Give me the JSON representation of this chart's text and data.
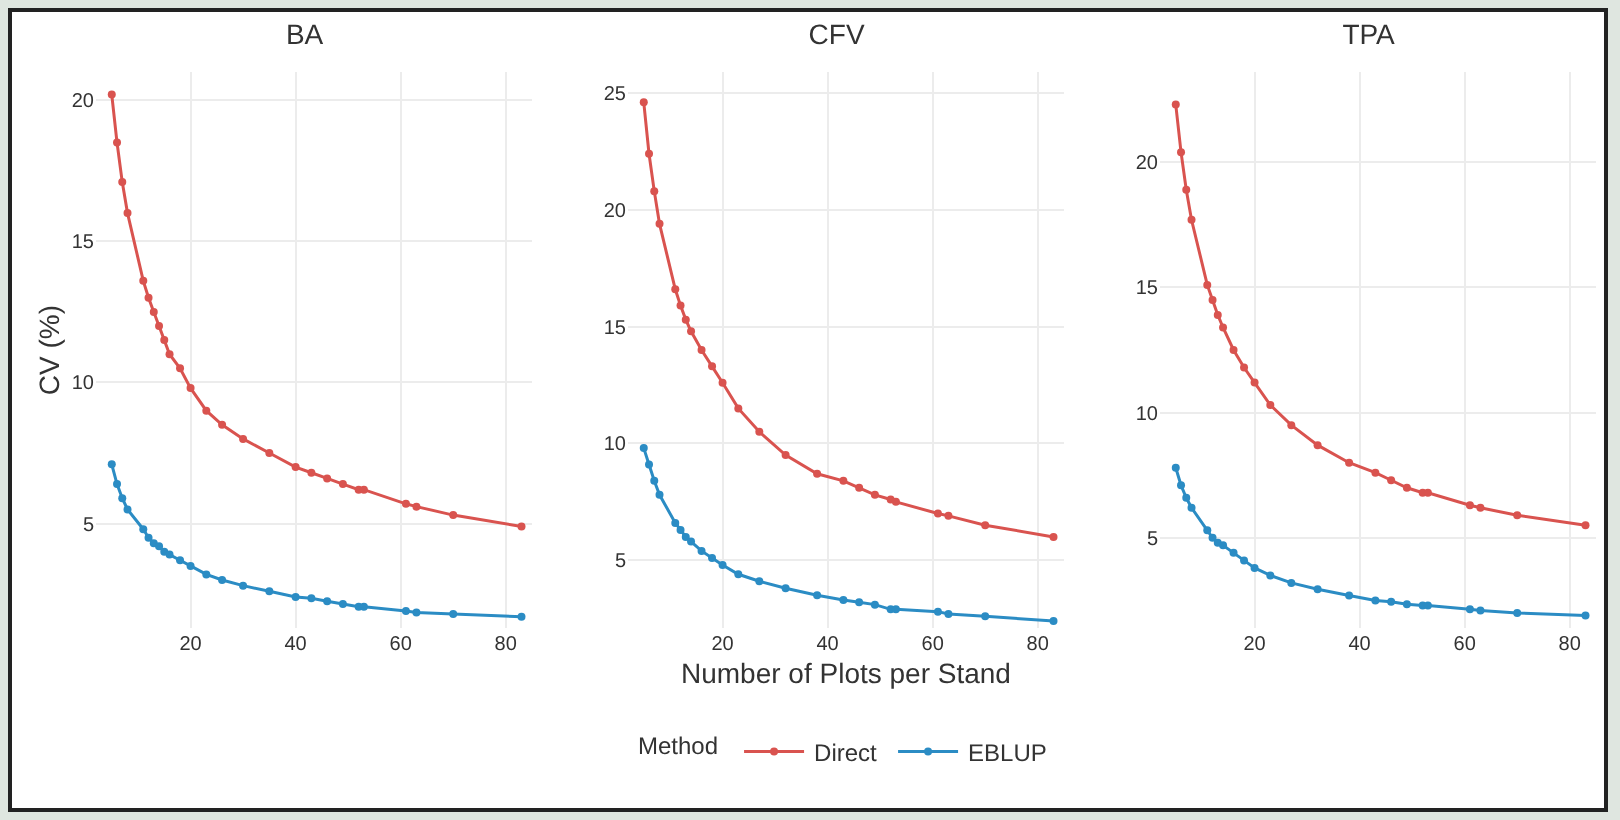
{
  "chart_data": [
    {
      "type": "line",
      "title": "BA",
      "ylabel": "CV (%)",
      "x": [
        5,
        6,
        7,
        8,
        11,
        12,
        13,
        14,
        15,
        16,
        18,
        20,
        23,
        26,
        30,
        35,
        40,
        43,
        46,
        49,
        52,
        53,
        61,
        63,
        70,
        83
      ],
      "xlim": [
        2,
        85
      ],
      "xticks": [
        20,
        40,
        60,
        80
      ],
      "ylim": [
        1.3,
        21
      ],
      "yticks": [
        5,
        10,
        15,
        20
      ],
      "grid": true,
      "legend": false,
      "marker": "circle",
      "line_style": "solid",
      "series": [
        {
          "color": "#d9534f",
          "values": [
            20.2,
            18.5,
            17.1,
            16,
            13.6,
            13,
            12.5,
            12,
            11.5,
            11,
            10.5,
            9.8,
            9,
            8.5,
            8,
            7.5,
            7,
            6.8,
            6.6,
            6.4,
            6.2,
            6.2,
            5.7,
            5.6,
            5.3,
            4.9
          ]
        },
        {
          "color": "#2b8cc4",
          "values": [
            7.1,
            6.4,
            5.9,
            5.5,
            4.8,
            4.5,
            4.3,
            4.2,
            4,
            3.9,
            3.7,
            3.5,
            3.2,
            3,
            2.8,
            2.6,
            2.4,
            2.35,
            2.25,
            2.15,
            2.05,
            2.05,
            1.9,
            1.85,
            1.8,
            1.7
          ]
        }
      ]
    },
    {
      "type": "line",
      "title": "CFV",
      "xlabel": "Number of Plots per Stand",
      "legend_title": "Method",
      "x": [
        5,
        6,
        7,
        8,
        11,
        12,
        13,
        14,
        16,
        18,
        20,
        23,
        27,
        32,
        38,
        43,
        46,
        49,
        52,
        53,
        61,
        63,
        70,
        83
      ],
      "xlim": [
        2,
        85
      ],
      "xticks": [
        20,
        40,
        60,
        80
      ],
      "ylim": [
        2.1,
        25.9
      ],
      "yticks": [
        5,
        10,
        15,
        20,
        25
      ],
      "grid": true,
      "legend": "bottom",
      "marker": "circle",
      "line_style": "solid",
      "series": [
        {
          "name": "Direct",
          "color": "#d9534f",
          "values": [
            24.6,
            22.4,
            20.8,
            19.4,
            16.6,
            15.9,
            15.3,
            14.8,
            14,
            13.3,
            12.6,
            11.5,
            10.5,
            9.5,
            8.7,
            8.4,
            8.1,
            7.8,
            7.6,
            7.5,
            7,
            6.9,
            6.5,
            6
          ]
        },
        {
          "name": "EBLUP",
          "color": "#2b8cc4",
          "values": [
            9.8,
            9.1,
            8.4,
            7.8,
            6.6,
            6.3,
            6,
            5.8,
            5.4,
            5.1,
            4.8,
            4.4,
            4.1,
            3.8,
            3.5,
            3.3,
            3.2,
            3.1,
            2.9,
            2.9,
            2.8,
            2.7,
            2.6,
            2.4
          ]
        }
      ]
    },
    {
      "type": "line",
      "title": "TPA",
      "x": [
        5,
        6,
        7,
        8,
        11,
        12,
        13,
        14,
        16,
        18,
        20,
        23,
        27,
        32,
        38,
        43,
        46,
        49,
        52,
        53,
        61,
        63,
        70,
        83
      ],
      "xlim": [
        2,
        85
      ],
      "xticks": [
        20,
        40,
        60,
        80
      ],
      "ylim": [
        1.4,
        23.6
      ],
      "yticks": [
        5,
        10,
        15,
        20
      ],
      "grid": true,
      "legend": false,
      "marker": "circle",
      "line_style": "solid",
      "series": [
        {
          "color": "#d9534f",
          "values": [
            22.3,
            20.4,
            18.9,
            17.7,
            15.1,
            14.5,
            13.9,
            13.4,
            12.5,
            11.8,
            11.2,
            10.3,
            9.5,
            8.7,
            8,
            7.6,
            7.3,
            7,
            6.8,
            6.8,
            6.3,
            6.2,
            5.9,
            5.5
          ]
        },
        {
          "color": "#2b8cc4",
          "values": [
            7.8,
            7.1,
            6.6,
            6.2,
            5.3,
            5,
            4.8,
            4.7,
            4.4,
            4.1,
            3.8,
            3.5,
            3.2,
            2.95,
            2.7,
            2.5,
            2.45,
            2.35,
            2.3,
            2.3,
            2.15,
            2.1,
            2,
            1.9
          ]
        }
      ]
    }
  ]
}
